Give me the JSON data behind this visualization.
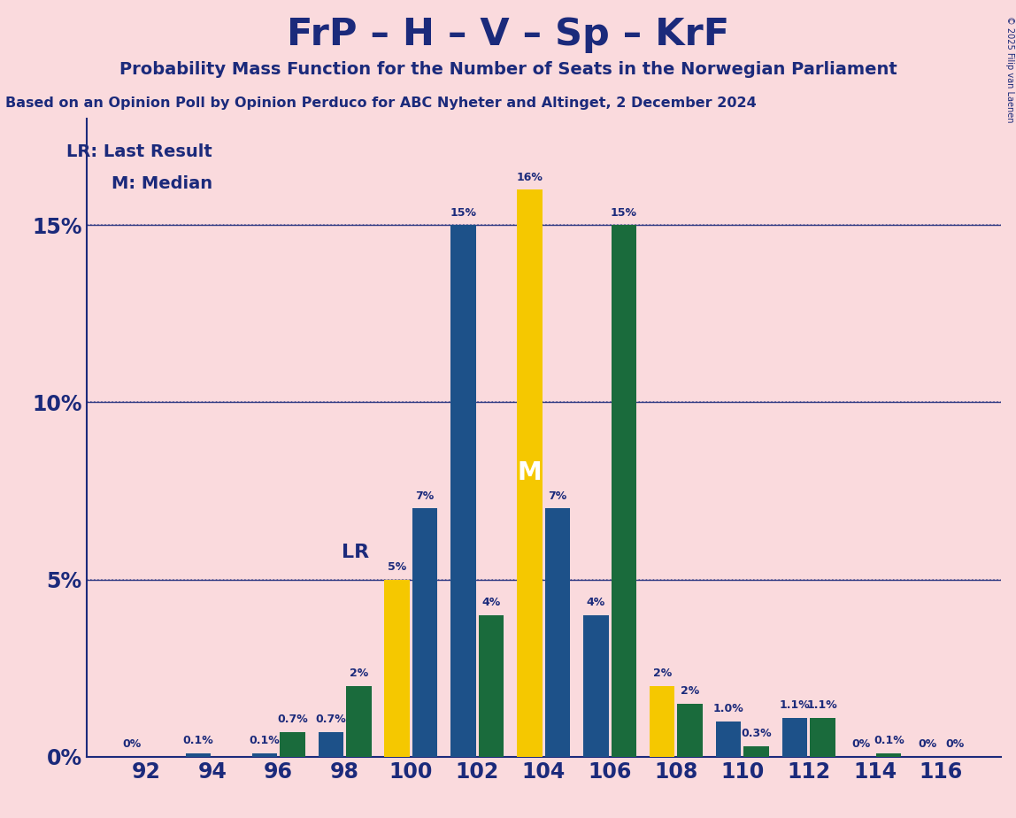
{
  "title": "FrP – H – V – Sp – KrF",
  "subtitle1": "Probability Mass Function for the Number of Seats in the Norwegian Parliament",
  "subtitle2": "Based on an Opinion Poll by Opinion Perduco for ABC Nyheter and Altinget, 2 December 2024",
  "copyright": "© 2025 Filip van Laenen",
  "bg_color": "#FADADD",
  "title_color": "#1b2a7b",
  "blue_color": "#1d5189",
  "green_color": "#1a6b3c",
  "yellow_color": "#f5c800",
  "legend_lr": "LR: Last Result",
  "legend_m": "M: Median",
  "seats": [
    92,
    94,
    96,
    98,
    100,
    102,
    104,
    106,
    108,
    110,
    112,
    114,
    116
  ],
  "left_bar_color": [
    "blue",
    "blue",
    "blue",
    "blue",
    "yellow",
    "blue",
    "yellow",
    "blue",
    "yellow",
    "blue",
    "blue",
    "blue",
    "blue"
  ],
  "right_bar_color": [
    "green",
    "green",
    "green",
    "green",
    "blue",
    "green",
    "blue",
    "green",
    "green",
    "green",
    "green",
    "green",
    "green"
  ],
  "left_values": [
    0.0,
    0.1,
    0.1,
    0.7,
    5.0,
    15.0,
    16.0,
    4.0,
    2.0,
    1.0,
    1.1,
    0.0,
    0.0
  ],
  "right_values": [
    0.0,
    0.0,
    0.7,
    2.0,
    7.0,
    4.0,
    7.0,
    15.0,
    1.5,
    0.3,
    1.1,
    0.1,
    0.0
  ],
  "left_labels": [
    "0%",
    "0.1%",
    "0.1%",
    "0.7%",
    "5%",
    "15%",
    "16%",
    "4%",
    "2%",
    "1.0%",
    "1.1%",
    "0%",
    "0%"
  ],
  "right_labels": [
    "",
    "",
    "0.7%",
    "2%",
    "7%",
    "4%",
    "7%",
    "15%",
    "2%",
    "0.3%",
    "1.1%",
    "0.1%",
    "0%"
  ],
  "lr_seat_idx": 4,
  "median_seat_idx": 6,
  "ylim_max": 18.0,
  "ytick_vals": [
    0,
    5,
    10,
    15
  ],
  "ytick_labels": [
    "0%",
    "5%",
    "10%",
    "15%"
  ]
}
